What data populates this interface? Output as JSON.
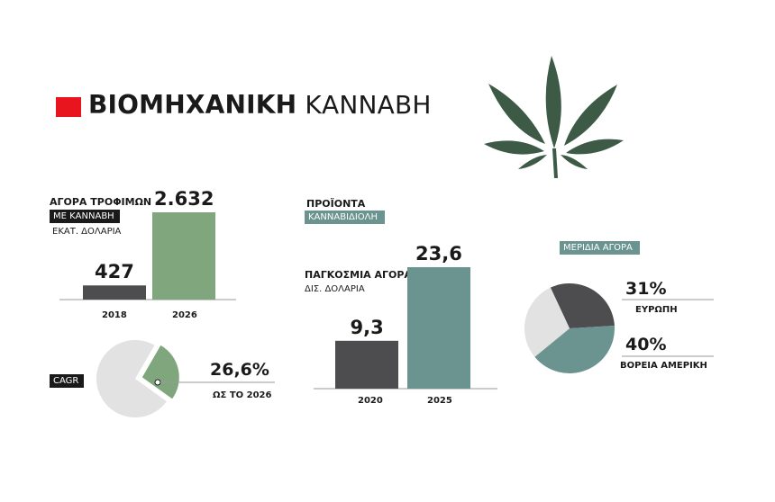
{
  "header": {
    "title_bold": "ΒΙΟΜΗΧΑΝΙΚΗ",
    "title_light": "ΚΑΝΝΑΒΗ",
    "accent_color": "#e8141e"
  },
  "chart_data": [
    {
      "type": "bar",
      "title_line1": "ΑΓΟΡΑ ΤΡΟΦΙΜΩΝ",
      "title_line2": "ΜΕ ΚΑΝΝΑΒΗ",
      "unit": "ΕΚΑΤ. ΔΟΛΑΡΙΑ",
      "categories": [
        "2018",
        "2026"
      ],
      "values": [
        427,
        2632
      ],
      "value_labels": [
        "427",
        "2.632"
      ],
      "colors": [
        "#4d4d4f",
        "#7fa67d"
      ]
    },
    {
      "type": "pie",
      "label": "CAGR",
      "value_label": "26,6%",
      "caption": "ΩΣ ΤΟ 2026",
      "value": 26.6,
      "colors": [
        "#7fa67d",
        "#e2e2e3"
      ]
    },
    {
      "type": "bar",
      "title_line1": "ΠΡΟΪΟΝΤΑ",
      "title_line2": "ΚΑΝΝΑΒΙΔΙΟΛΗ",
      "subtitle": "ΠΑΓΚΟΣΜΙΑ ΑΓΟΡΑ",
      "unit": "ΔΙΣ. ΔΟΛΑΡΙΑ",
      "categories": [
        "2020",
        "2025"
      ],
      "values": [
        9.3,
        23.6
      ],
      "value_labels": [
        "9,3",
        "23,6"
      ],
      "colors": [
        "#4d4d4f",
        "#6b9490"
      ]
    },
    {
      "type": "pie",
      "label": "ΜΕΡΙΔΙΑ ΑΓΟΡΑ",
      "slices": [
        {
          "name": "ΕΥΡΩΠΗ",
          "value": 31,
          "value_label": "31%",
          "color": "#4d4d4f"
        },
        {
          "name": "ΒΟΡΕΙΑ ΑΜΕΡΙΚΗ",
          "value": 40,
          "value_label": "40%",
          "color": "#6b9490"
        },
        {
          "value": 29,
          "color": "#e2e2e3"
        }
      ]
    }
  ],
  "decor": {
    "leaf_icon": "cannabis-leaf-icon",
    "leaf_color": "#3d5a46"
  }
}
